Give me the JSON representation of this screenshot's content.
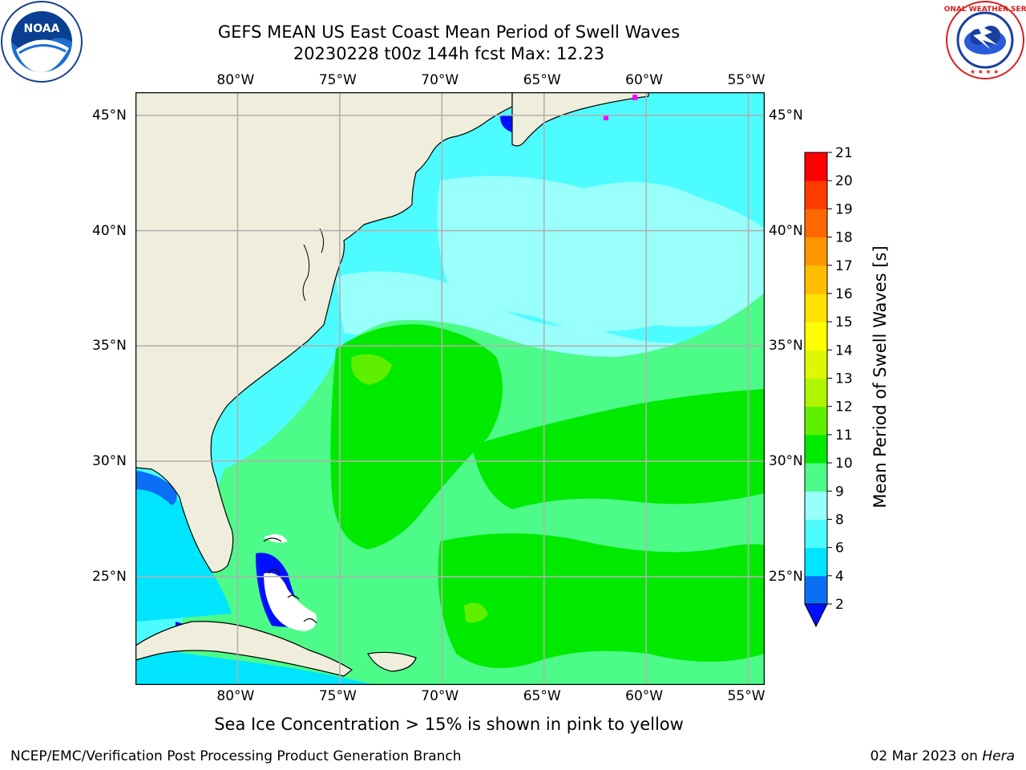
{
  "title_line1": "GEFS MEAN US East Coast Mean Period of Swell Waves",
  "title_line2": "20230228 t00z 144h fcst   Max: 12.23",
  "logos": {
    "left_text": "NOAA",
    "left_ring_text": "NATIONAL OCEANIC AND ATMOSPHERIC ADMINISTRATION · U.S. DEPARTMENT OF COMMERCE",
    "right_ring_text": "NATIONAL WEATHER SERVICE"
  },
  "axes": {
    "lon_labels": [
      "80°W",
      "75°W",
      "70°W",
      "65°W",
      "60°W",
      "55°W"
    ],
    "lon_values": [
      -80,
      -75,
      -70,
      -65,
      -60,
      -55
    ],
    "lat_labels": [
      "45°N",
      "40°N",
      "35°N",
      "30°N",
      "25°N"
    ],
    "lat_values": [
      45,
      40,
      35,
      30,
      25
    ],
    "lon_range": [
      -85,
      -54.2
    ],
    "lat_range": [
      20.3,
      46
    ]
  },
  "colorbar": {
    "label": "Mean Period of Swell Waves [s]",
    "ticks": [
      "2",
      "4",
      "6",
      "8",
      "9",
      "10",
      "11",
      "12",
      "13",
      "14",
      "15",
      "16",
      "17",
      "18",
      "19",
      "20",
      "21"
    ],
    "colors": [
      "#0a6ff5",
      "#00e5ff",
      "#4dfcff",
      "#99fffa",
      "#4cfb88",
      "#00ea00",
      "#5ff000",
      "#b0f400",
      "#dff800",
      "#ffff00",
      "#ffe100",
      "#ffbe00",
      "#ff9600",
      "#ff6800",
      "#ff3c00",
      "#ff0000"
    ],
    "under_color": "#0010ff"
  },
  "colors": {
    "land": "#efeedc",
    "ocean_cyan": "#4dfcff",
    "ocean_pale": "#99fffa",
    "green_light": "#4cfb88",
    "green": "#00ea00",
    "deep_blue": "#0010ff",
    "grid": "#b0b0b0"
  },
  "caption": "Sea Ice Concentration > 15% is shown in pink to yellow",
  "footer_left": "NCEP/EMC/Verification Post Processing Product Generation Branch",
  "footer_right_date": "02 Mar 2023 on ",
  "footer_right_host": "Hera"
}
